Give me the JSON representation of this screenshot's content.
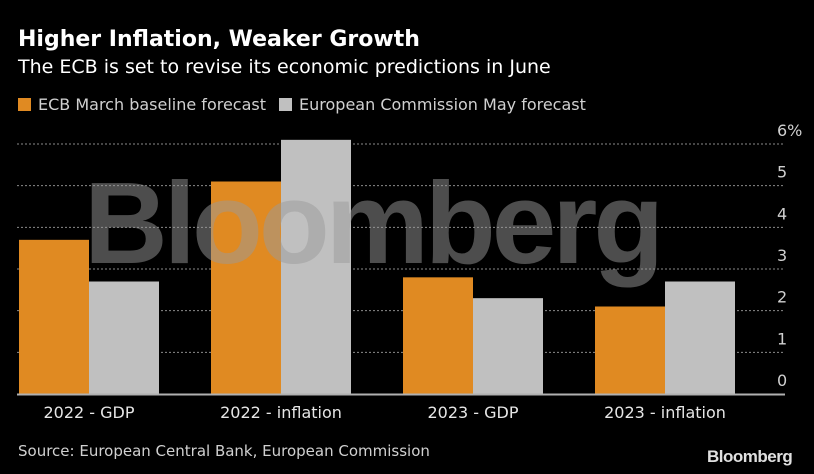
{
  "header": {
    "title": "Higher Inflation, Weaker Growth",
    "subtitle": "The ECB is set to revise its economic predictions in June"
  },
  "legend": [
    {
      "label": "ECB March baseline forecast",
      "color": "#e08a22"
    },
    {
      "label": "European Commission May forecast",
      "color": "#c0c0c0"
    }
  ],
  "footer": {
    "source": "Source: European Central Bank, European Commission",
    "brand": "Bloomberg"
  },
  "watermark": "Bloomberg",
  "colors": {
    "background": "#000000",
    "ecb": "#e08a22",
    "ec": "#c0c0c0",
    "grid": "#8a8a8a",
    "axis": "#b0b0b0"
  },
  "chart_data": {
    "type": "bar",
    "title": "Higher Inflation, Weaker Growth",
    "subtitle": "The ECB is set to revise its economic predictions in June",
    "categories": [
      "2022 - GDP",
      "2022 - inflation",
      "2023 - GDP",
      "2023 - inflation"
    ],
    "series": [
      {
        "name": "ECB March baseline forecast",
        "values": [
          3.7,
          5.1,
          2.8,
          2.1
        ]
      },
      {
        "name": "European Commission May forecast",
        "values": [
          2.7,
          6.1,
          2.3,
          2.7
        ]
      }
    ],
    "xlabel": "",
    "ylabel": "",
    "ylim": [
      0,
      6
    ],
    "yticks": [
      0,
      1,
      2,
      3,
      4,
      5,
      6
    ],
    "ytick_labels": [
      "0",
      "1",
      "2",
      "3",
      "4",
      "5",
      "6%"
    ],
    "y_axis_side": "right",
    "grid": true,
    "legend_position": "top-left"
  }
}
